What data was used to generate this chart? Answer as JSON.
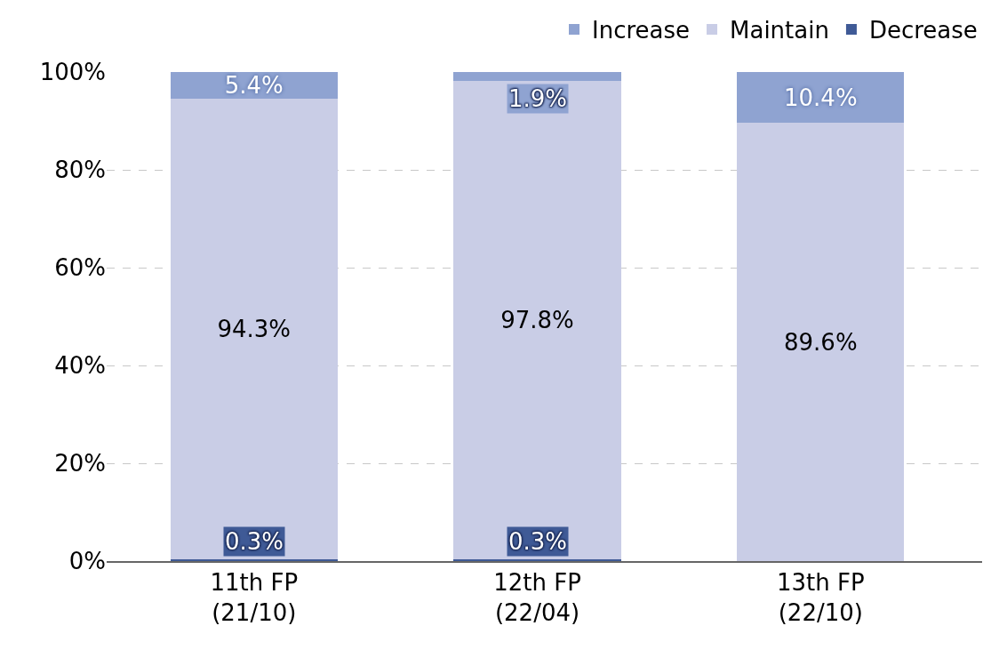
{
  "chart_data": {
    "type": "bar",
    "stacked": true,
    "categories": [
      "11th FP\n(21/10)",
      "12th FP\n(22/04)",
      "13th FP\n(22/10)"
    ],
    "series": [
      {
        "name": "Decrease",
        "color": "#3f5a96",
        "values": [
          0.3,
          0.3,
          0
        ],
        "value_labels": [
          "0.3%",
          "0.3%",
          null
        ]
      },
      {
        "name": "Maintain",
        "color": "#c9cde6",
        "values": [
          94.3,
          97.8,
          89.6
        ],
        "value_labels": [
          "94.3%",
          "97.8%",
          "89.6%"
        ]
      },
      {
        "name": "Increase",
        "color": "#8fa3d1",
        "values": [
          5.4,
          1.9,
          10.4
        ],
        "value_labels": [
          "5.4%",
          "1.9%",
          "10.4%"
        ]
      }
    ],
    "ylim": [
      0,
      100
    ],
    "yticks": [
      {
        "value": 0,
        "label": "0%"
      },
      {
        "value": 20,
        "label": "20%"
      },
      {
        "value": 40,
        "label": "40%"
      },
      {
        "value": 60,
        "label": "60%"
      },
      {
        "value": 80,
        "label": "80%"
      },
      {
        "value": 100,
        "label": "100%"
      }
    ],
    "grid": "y",
    "legend": "top right"
  }
}
